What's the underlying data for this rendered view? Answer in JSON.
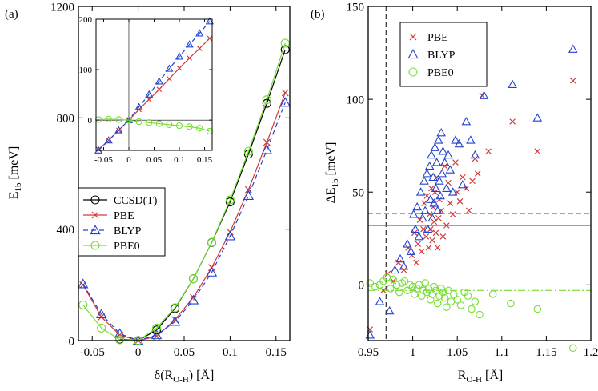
{
  "colors": {
    "ccsdt": "#000000",
    "pbe": "#d23a3a",
    "blyp": "#2244cc",
    "pbe0": "#77dd33"
  },
  "chart_data": [
    {
      "id": "a",
      "type": "line",
      "panel_label": "(a)",
      "xlabel_main": "δ(R",
      "xlabel_sub": "O-H",
      "xlabel_tail": ") [Å]",
      "ylabel_main": "E",
      "ylabel_sub": "1b",
      "ylabel_tail": " [meV]",
      "xlim": [
        -0.065,
        0.165
      ],
      "ylim": [
        0,
        1200
      ],
      "xticks": [
        -0.05,
        0,
        0.05,
        0.1,
        0.15
      ],
      "xtick_labels": [
        "-0.05",
        "0",
        "0.05",
        "0.1",
        "0.15"
      ],
      "yticks": [
        0,
        400,
        800,
        1200
      ],
      "ytick_labels": [
        "0",
        "400",
        "800",
        "1200"
      ],
      "legend_position": "lower-left",
      "x": [
        -0.06,
        -0.04,
        -0.02,
        0,
        0.02,
        0.04,
        0.06,
        0.08,
        0.1,
        0.12,
        0.14,
        0.16
      ],
      "series": [
        {
          "name": "CCSD(T)",
          "marker": "circle",
          "dash": "solid",
          "values": [
            null,
            null,
            5,
            0,
            38,
            115,
            222,
            352,
            498,
            670,
            852,
            1045
          ]
        },
        {
          "name": "PBE",
          "marker": "x",
          "dash": "solid",
          "values": [
            200,
            85,
            20,
            0,
            15,
            75,
            155,
            262,
            390,
            542,
            712,
            890
          ]
        },
        {
          "name": "BLYP",
          "marker": "triangle",
          "dash": "dashed",
          "values": [
            203,
            95,
            25,
            0,
            20,
            68,
            145,
            245,
            375,
            520,
            685,
            855
          ]
        },
        {
          "name": "PBE0",
          "marker": "circle",
          "dash": "solid",
          "values": [
            128,
            45,
            3,
            0,
            45,
            118,
            222,
            353,
            505,
            680,
            865,
            1068
          ]
        }
      ],
      "inset": {
        "xlim": [
          -0.065,
          0.165
        ],
        "ylim": [
          -60,
          200
        ],
        "xticks": [
          -0.05,
          0,
          0.05,
          0.1,
          0.15
        ],
        "xtick_labels": [
          "-0.05",
          "0",
          "0.05",
          "0.1",
          "0.15"
        ],
        "yticks": [
          0,
          100,
          200
        ],
        "ytick_labels": [
          "0",
          "100",
          "200"
        ],
        "x": [
          -0.06,
          -0.04,
          -0.02,
          0,
          0.02,
          0.04,
          0.06,
          0.08,
          0.1,
          0.12,
          0.14,
          0.16
        ],
        "series": [
          {
            "name": "PBE",
            "marker": "x",
            "dash": "solid",
            "values": [
              -58,
              -40,
              -20,
              0,
              21,
              41,
              61,
              82,
              103,
              123,
              142,
              162
            ]
          },
          {
            "name": "BLYP",
            "marker": "triangle",
            "dash": "dashed",
            "values": [
              -60,
              -40,
              -20,
              0,
              26,
              51,
              77,
              102,
              126,
              150,
              172,
              196
            ]
          },
          {
            "name": "PBE0",
            "marker": "circle",
            "dash": "solid",
            "values": [
              1,
              2,
              1,
              0,
              -3,
              -5,
              -7,
              -9,
              -11,
              -13,
              -16,
              -22
            ]
          }
        ]
      }
    },
    {
      "id": "b",
      "type": "scatter",
      "panel_label": "(b)",
      "xlabel_main": "R",
      "xlabel_sub": "O-H",
      "xlabel_tail": " [Å]",
      "ylabel_main": "ΔE",
      "ylabel_sub": "1b",
      "ylabel_tail": " [meV]",
      "xlim": [
        0.95,
        1.2
      ],
      "ylim": [
        -30,
        150
      ],
      "xticks": [
        0.95,
        1,
        1.05,
        1.1,
        1.15,
        1.2
      ],
      "xtick_labels": [
        "0.95",
        "1",
        "1.05",
        "1.1",
        "1.15",
        "1.2"
      ],
      "yticks": [
        0,
        50,
        100,
        150
      ],
      "ytick_labels": [
        "0",
        "50",
        "100",
        "150"
      ],
      "legend_position": "top-left",
      "vline_x": 0.97,
      "mean_lines": [
        {
          "name": "PBE",
          "value": 32,
          "dash": "solid"
        },
        {
          "name": "BLYP",
          "value": 38.5,
          "dash": "dashed"
        },
        {
          "name": "PBE0",
          "value": -3,
          "dash": "dashdot"
        }
      ],
      "series": [
        {
          "name": "PBE",
          "marker": "x",
          "x": [
            0.952,
            0.967,
            0.972,
            0.978,
            0.984,
            0.99,
            0.995,
            0.999,
            1.002,
            1.004,
            1.006,
            1.008,
            1.01,
            1.012,
            1.013,
            1.015,
            1.016,
            1.018,
            1.019,
            1.02,
            1.021,
            1.022,
            1.023,
            1.024,
            1.025,
            1.026,
            1.027,
            1.028,
            1.029,
            1.03,
            1.032,
            1.034,
            1.036,
            1.038,
            1.04,
            1.042,
            1.045,
            1.048,
            1.05,
            1.053,
            1.056,
            1.06,
            1.063,
            1.067,
            1.07,
            1.073,
            1.078,
            1.085,
            1.112,
            1.14,
            1.18
          ],
          "y": [
            -24,
            -3,
            6,
            2,
            12,
            8,
            20,
            16,
            28,
            12,
            22,
            35,
            18,
            30,
            44,
            26,
            48,
            20,
            38,
            30,
            52,
            24,
            42,
            34,
            50,
            28,
            58,
            20,
            36,
            46,
            40,
            26,
            64,
            32,
            55,
            44,
            38,
            66,
            50,
            45,
            58,
            52,
            40,
            56,
            68,
            60,
            102,
            72,
            88,
            72,
            110
          ]
        },
        {
          "name": "BLYP",
          "marker": "triangle",
          "x": [
            0.952,
            0.963,
            0.974,
            0.98,
            0.986,
            0.99,
            0.994,
            0.998,
            1.001,
            1.003,
            1.005,
            1.007,
            1.009,
            1.011,
            1.013,
            1.014,
            1.016,
            1.017,
            1.019,
            1.02,
            1.021,
            1.022,
            1.023,
            1.024,
            1.025,
            1.026,
            1.027,
            1.028,
            1.029,
            1.03,
            1.031,
            1.032,
            1.033,
            1.034,
            1.036,
            1.038,
            1.04,
            1.042,
            1.045,
            1.048,
            1.052,
            1.056,
            1.06,
            1.065,
            1.07,
            1.08,
            1.112,
            1.14,
            1.18
          ],
          "y": [
            -27,
            -9,
            -14,
            8,
            14,
            10,
            22,
            18,
            38,
            30,
            42,
            26,
            50,
            36,
            56,
            40,
            60,
            30,
            64,
            46,
            70,
            36,
            58,
            44,
            74,
            52,
            66,
            40,
            78,
            56,
            48,
            82,
            60,
            72,
            66,
            52,
            70,
            62,
            50,
            78,
            76,
            54,
            88,
            78,
            70,
            102,
            108,
            90,
            127
          ]
        },
        {
          "name": "PBE0",
          "marker": "circle",
          "x": [
            0.952,
            0.958,
            0.963,
            0.967,
            0.971,
            0.975,
            0.978,
            0.982,
            0.985,
            0.988,
            0.991,
            0.994,
            0.997,
            1.0,
            1.002,
            1.005,
            1.007,
            1.01,
            1.012,
            1.014,
            1.016,
            1.018,
            1.02,
            1.022,
            1.024,
            1.026,
            1.028,
            1.03,
            1.032,
            1.034,
            1.036,
            1.038,
            1.04,
            1.043,
            1.046,
            1.05,
            1.054,
            1.058,
            1.062,
            1.066,
            1.07,
            1.075,
            1.09,
            1.11,
            1.14,
            1.18
          ],
          "y": [
            1,
            -1,
            0,
            2,
            4,
            -2,
            3,
            0,
            -4,
            1,
            2,
            -3,
            0,
            -1,
            -5,
            -2,
            0,
            -6,
            -3,
            1,
            -4,
            -2,
            -8,
            -5,
            -1,
            -3,
            -10,
            -6,
            -2,
            -4,
            -7,
            -12,
            -3,
            -9,
            -5,
            -8,
            -11,
            -4,
            -6,
            -13,
            -9,
            -16,
            -5,
            -10,
            -13,
            -34
          ]
        }
      ]
    }
  ]
}
